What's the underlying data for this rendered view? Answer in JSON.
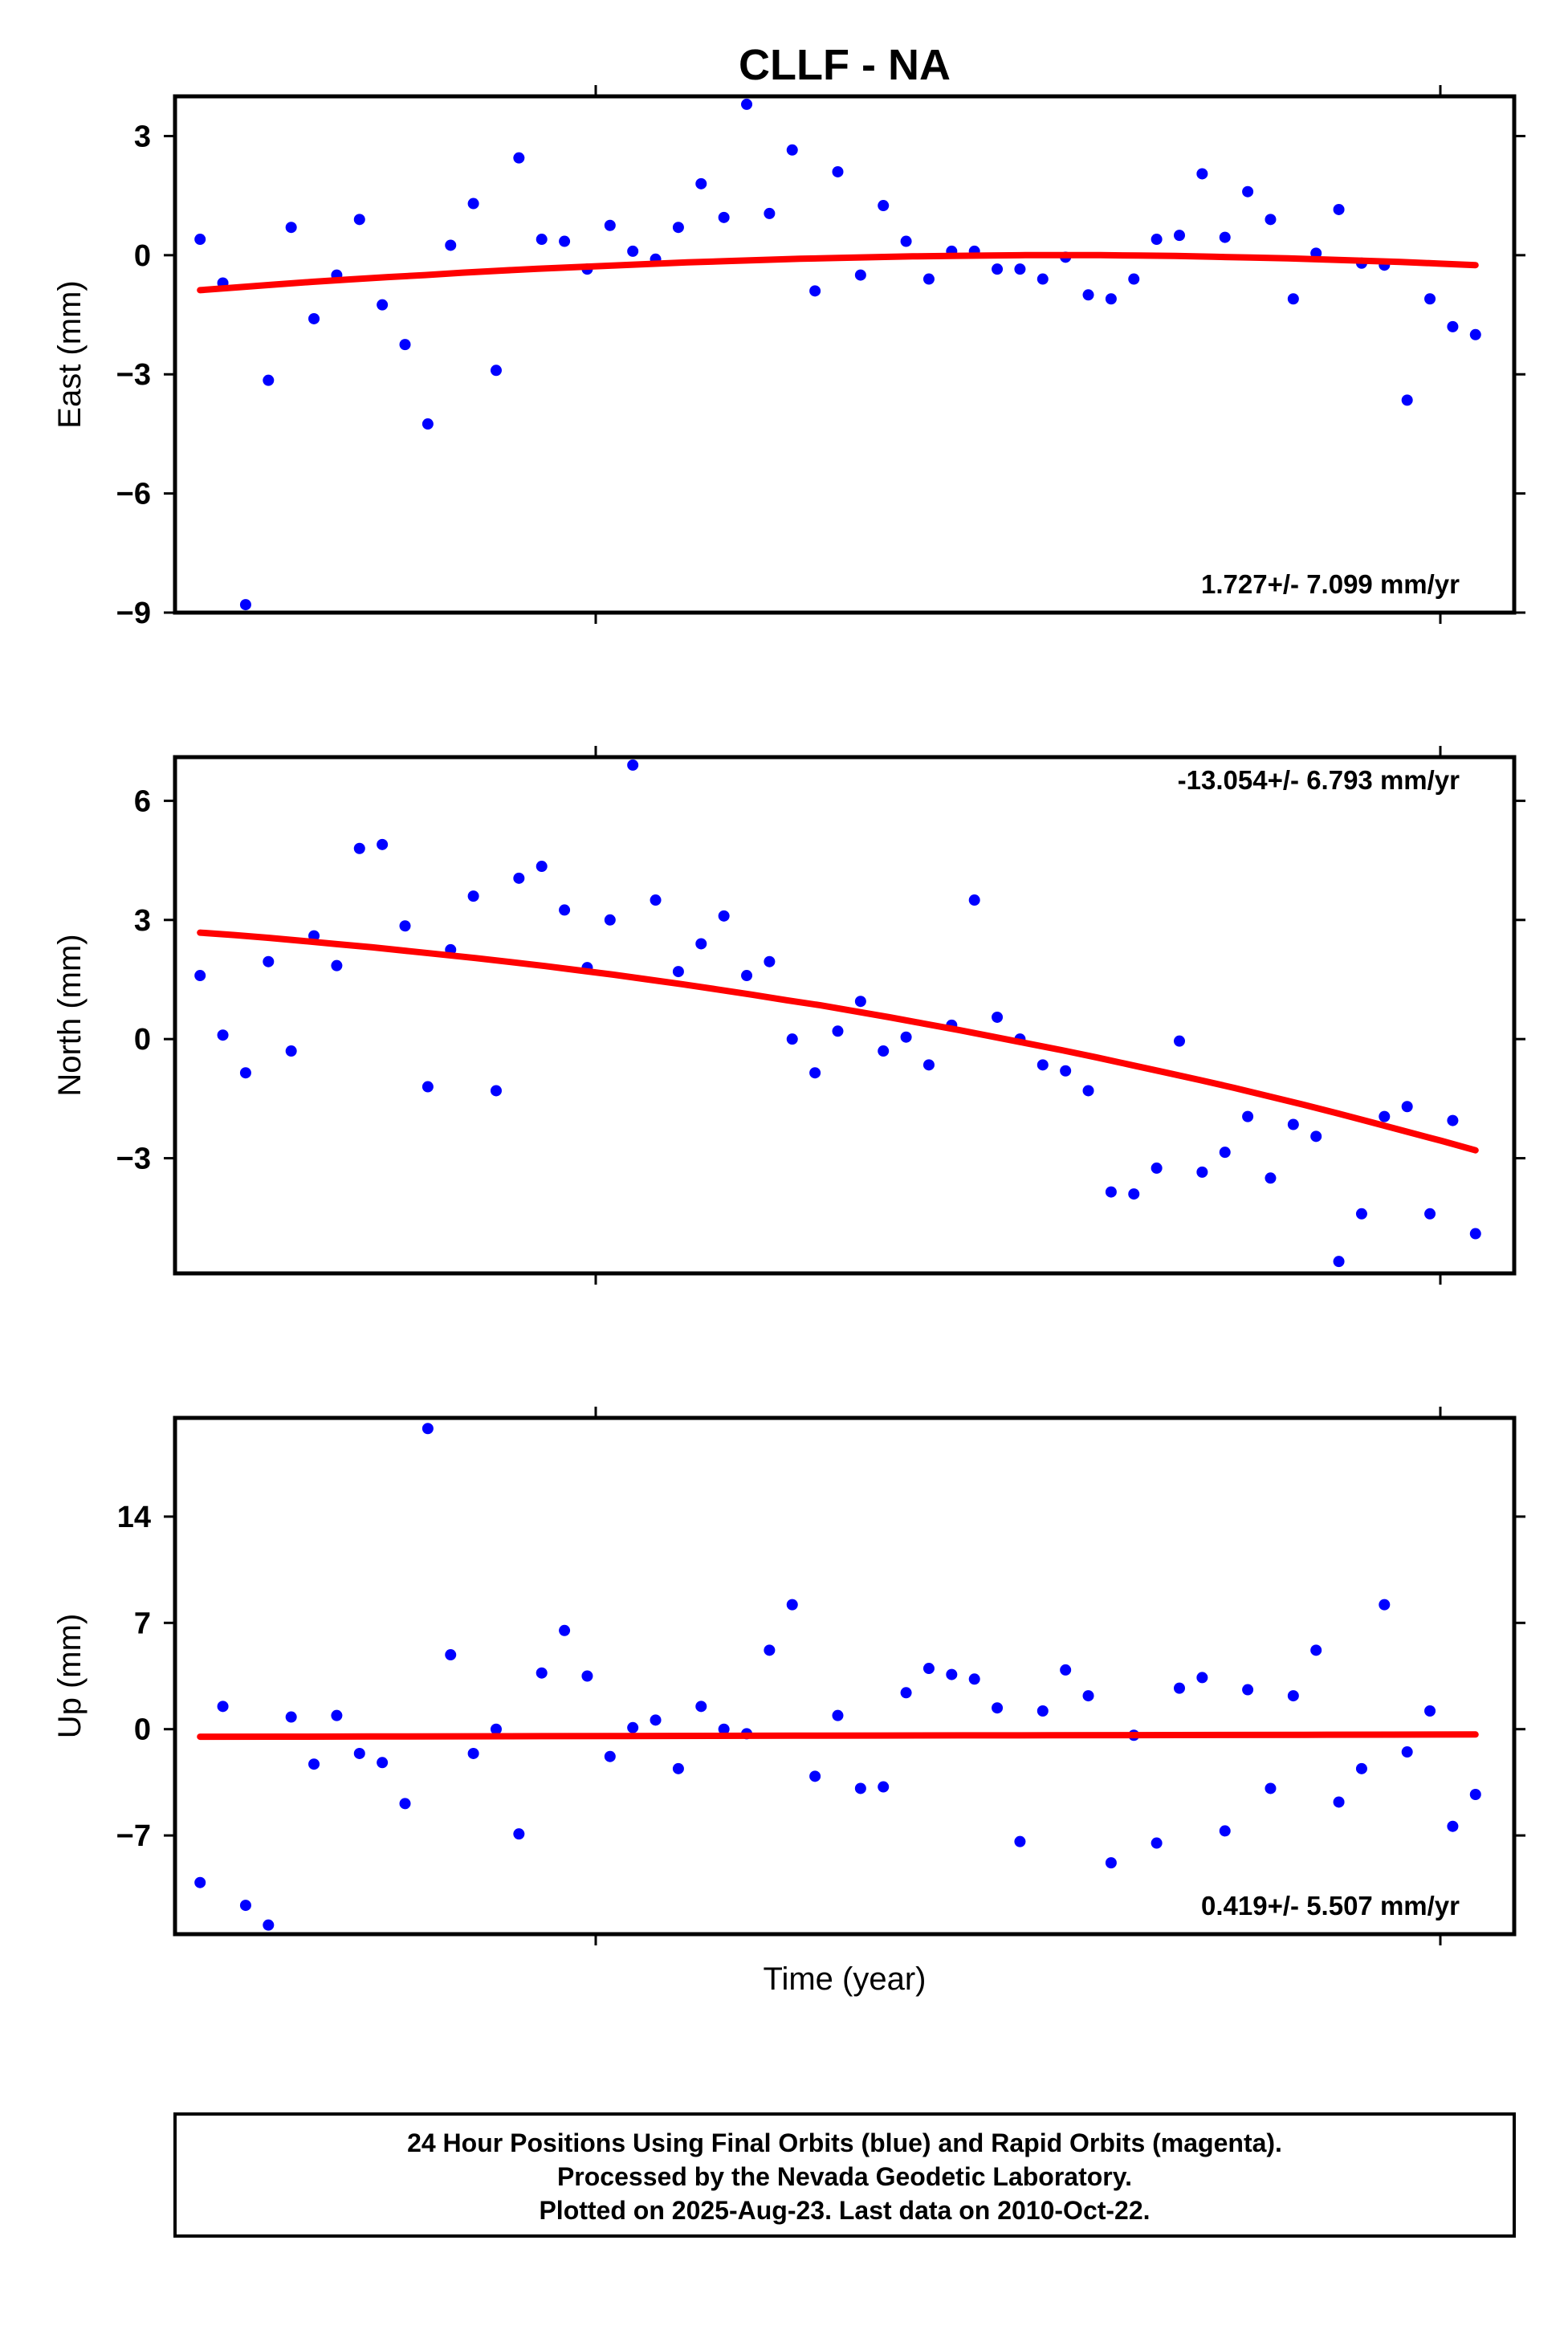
{
  "figure": {
    "title": "CLLF - NA",
    "xlabel": "Time (year)",
    "footer_lines": [
      "24 Hour Positions Using Final Orbits (blue) and Rapid Orbits (magenta).",
      "Processed by the Nevada Geodetic Laboratory.",
      "Plotted on 2025-Aug-23. Last data on 2010-Oct-22."
    ],
    "colors": {
      "final_orbits": "#0000ff",
      "trend": "#ff0000",
      "frame": "#000000"
    }
  },
  "chart_data": [
    {
      "type": "scatter",
      "ylabel": "East (mm)",
      "ylim": [
        -9,
        4
      ],
      "yticks": [
        3,
        0,
        -3,
        -6,
        -9
      ],
      "ytick_labels": [
        "3",
        "0",
        "−3",
        "−6",
        "−9"
      ],
      "rate": "1.727+/- 7.099 mm/yr",
      "rate_position": "bottom-right",
      "x": [
        0,
        1,
        2,
        3,
        4,
        5,
        6,
        7,
        8,
        9,
        10,
        11,
        12,
        13,
        14,
        15,
        16,
        17,
        18,
        19,
        20,
        21,
        22,
        23,
        24,
        25,
        26,
        27,
        28,
        29,
        30,
        31,
        32,
        33,
        34,
        35,
        36,
        37,
        38,
        39,
        40,
        41,
        42,
        43,
        44,
        45,
        46,
        47,
        48,
        49,
        50,
        51,
        52,
        53,
        54,
        55,
        56
      ],
      "values": [
        0.4,
        -0.7,
        -8.8,
        -3.15,
        0.7,
        -1.6,
        -0.5,
        0.9,
        -1.25,
        -2.25,
        -4.25,
        0.25,
        1.3,
        -2.9,
        2.45,
        0.4,
        0.35,
        -0.35,
        0.75,
        0.1,
        -0.1,
        0.7,
        1.8,
        0.95,
        3.8,
        1.05,
        2.65,
        -0.9,
        2.1,
        -0.5,
        1.25,
        0.35,
        -0.6,
        0.1,
        0.1,
        -0.35,
        -0.35,
        -0.6,
        -0.05,
        -1.0,
        -1.1,
        -0.6,
        0.4,
        0.5,
        2.05,
        0.45,
        1.6,
        0.9,
        -1.1,
        0.05,
        1.15,
        -0.2,
        -0.25,
        -3.65,
        -1.1,
        -1.8,
        -2.0
      ],
      "trend": [
        -0.88,
        -0.81,
        -0.74,
        -0.67,
        -0.61,
        -0.55,
        -0.5,
        -0.44,
        -0.39,
        -0.34,
        -0.3,
        -0.26,
        -0.22,
        -0.18,
        -0.15,
        -0.12,
        -0.09,
        -0.07,
        -0.05,
        -0.03,
        -0.02,
        -0.01,
        0.0,
        0.0,
        0.0,
        -0.01,
        -0.02,
        -0.04,
        -0.06,
        -0.08,
        -0.11,
        -0.14,
        -0.17,
        -0.21,
        -0.25
      ],
      "trend_x": [
        0,
        1.65,
        3.29,
        4.94,
        6.59,
        8.24,
        9.88,
        11.53,
        13.18,
        14.82,
        16.47,
        18.12,
        19.76,
        21.41,
        23.06,
        24.71,
        26.35,
        28.0,
        29.65,
        31.29,
        32.94,
        34.59,
        36.24,
        37.88,
        39.53,
        41.18,
        42.82,
        44.47,
        46.12,
        47.76,
        49.41,
        51.06,
        52.71,
        54.35,
        56.0
      ]
    },
    {
      "type": "scatter",
      "ylabel": "North (mm)",
      "ylim": [
        -5.9,
        7.1
      ],
      "yticks": [
        6,
        3,
        0,
        -3
      ],
      "ytick_labels": [
        "6",
        "3",
        "0",
        "−3"
      ],
      "rate": "-13.054+/- 6.793 mm/yr",
      "rate_position": "top-right",
      "x": [
        0,
        1,
        2,
        3,
        4,
        5,
        6,
        7,
        8,
        9,
        10,
        11,
        12,
        13,
        14,
        15,
        16,
        17,
        18,
        19,
        20,
        21,
        22,
        23,
        24,
        25,
        26,
        27,
        28,
        29,
        30,
        31,
        32,
        33,
        34,
        35,
        36,
        37,
        38,
        39,
        40,
        41,
        42,
        43,
        44,
        45,
        46,
        47,
        48,
        49,
        50,
        51,
        52,
        53,
        54,
        55,
        56
      ],
      "values": [
        1.6,
        0.1,
        -0.85,
        1.95,
        -0.3,
        2.6,
        1.85,
        4.8,
        4.9,
        2.85,
        -1.2,
        2.25,
        3.6,
        -1.3,
        4.05,
        4.35,
        3.25,
        1.8,
        3.0,
        6.9,
        3.5,
        1.7,
        2.4,
        3.1,
        1.6,
        1.95,
        0.0,
        -0.85,
        0.2,
        0.95,
        -0.3,
        0.05,
        -0.65,
        0.35,
        3.5,
        0.55,
        0.0,
        -0.65,
        -0.8,
        -1.3,
        -3.85,
        -3.9,
        -3.25,
        -0.05,
        -3.35,
        -2.85,
        -1.95,
        -3.5,
        -2.15,
        -2.45,
        -5.6,
        -4.4,
        -1.95,
        -1.7,
        -4.4,
        -2.05,
        -4.9
      ],
      "trend": [
        2.68,
        2.62,
        2.55,
        2.47,
        2.39,
        2.31,
        2.22,
        2.13,
        2.04,
        1.94,
        1.84,
        1.73,
        1.62,
        1.5,
        1.38,
        1.25,
        1.12,
        0.98,
        0.85,
        0.7,
        0.55,
        0.39,
        0.23,
        0.06,
        -0.11,
        -0.28,
        -0.46,
        -0.65,
        -0.84,
        -1.03,
        -1.23,
        -1.44,
        -1.65,
        -1.87,
        -2.1,
        -2.33,
        -2.56,
        -2.8
      ],
      "trend_x": [
        0,
        1.51,
        3.03,
        4.54,
        6.05,
        7.57,
        9.08,
        10.59,
        12.11,
        13.62,
        15.14,
        16.65,
        18.16,
        19.68,
        21.19,
        22.7,
        24.22,
        25.73,
        27.24,
        28.76,
        30.27,
        31.78,
        33.3,
        34.81,
        36.32,
        37.84,
        39.35,
        40.86,
        42.38,
        43.89,
        45.41,
        46.92,
        48.43,
        49.95,
        51.46,
        52.97,
        54.49,
        56.0
      ]
    },
    {
      "type": "scatter",
      "ylabel": "Up (mm)",
      "ylim": [
        -13.5,
        20.5
      ],
      "yticks": [
        14,
        7,
        0,
        -7
      ],
      "ytick_labels": [
        "14",
        "7",
        "0",
        "−7"
      ],
      "rate": "0.419+/- 5.507 mm/yr",
      "rate_position": "bottom-right",
      "x": [
        0,
        1,
        2,
        3,
        4,
        5,
        6,
        7,
        8,
        9,
        10,
        11,
        12,
        13,
        14,
        15,
        16,
        17,
        18,
        19,
        20,
        21,
        22,
        23,
        24,
        25,
        26,
        27,
        28,
        29,
        30,
        31,
        32,
        33,
        34,
        35,
        36,
        37,
        38,
        39,
        40,
        41,
        42,
        43,
        44,
        45,
        46,
        47,
        48,
        49,
        50,
        51,
        52,
        53,
        54,
        55,
        56
      ],
      "values": [
        -10.1,
        1.5,
        -11.6,
        -12.9,
        0.8,
        -2.3,
        0.9,
        -1.6,
        -2.2,
        -4.9,
        19.8,
        4.9,
        -1.6,
        0.0,
        -6.9,
        3.7,
        6.5,
        3.5,
        -1.8,
        0.1,
        0.6,
        -2.6,
        1.5,
        0.0,
        -0.3,
        5.2,
        8.2,
        -3.1,
        0.9,
        -3.9,
        -3.8,
        2.4,
        4.0,
        3.6,
        3.3,
        1.4,
        -7.4,
        1.2,
        3.9,
        2.2,
        -8.8,
        -0.4,
        -7.5,
        2.7,
        3.4,
        -6.7,
        2.6,
        -3.9,
        2.2,
        5.2,
        -4.8,
        -2.6,
        8.2,
        -1.5,
        1.2,
        -6.4,
        -4.3
      ],
      "trend": [
        -0.5,
        -0.49,
        -0.48,
        -0.47,
        -0.46,
        -0.45,
        -0.44,
        -0.43,
        -0.42,
        -0.41,
        -0.4,
        -0.39,
        -0.38,
        -0.37,
        -0.36,
        -0.35
      ],
      "trend_x": [
        0,
        3.73,
        7.47,
        11.2,
        14.93,
        18.67,
        22.4,
        26.13,
        29.87,
        33.6,
        37.33,
        41.07,
        44.8,
        48.53,
        52.27,
        56.0
      ]
    }
  ]
}
